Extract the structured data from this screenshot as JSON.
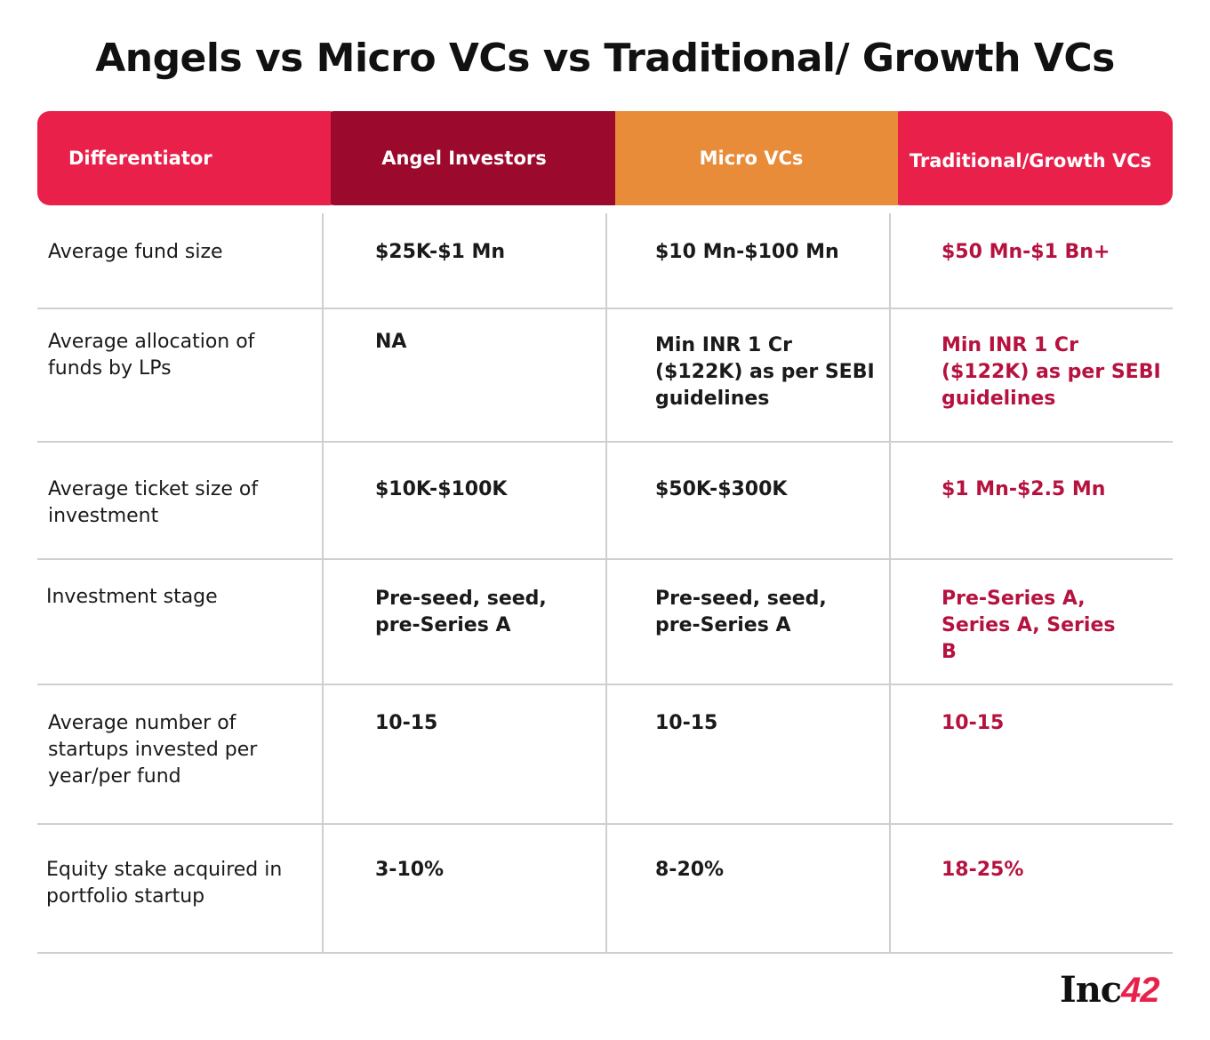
{
  "title": "Angels vs Micro VCs vs Traditional/ Growth VCs",
  "header": {
    "col0": "Differentiator",
    "col1": "Angel Investors",
    "col2": "Micro VCs",
    "col3": "Traditional/Growth VCs"
  },
  "rows": [
    {
      "label": "Average fund size",
      "angel": "$25K-$1 Mn",
      "micro": "$10 Mn-$100 Mn",
      "traditional": "$50 Mn-$1 Bn+"
    },
    {
      "label": "Average allocation of funds by LPs",
      "angel": "NA",
      "micro": "Min INR 1 Cr ($122K) as per SEBI guidelines",
      "traditional": "Min INR 1 Cr ($122K) as per SEBI guidelines"
    },
    {
      "label": "Average ticket size of investment",
      "angel": "$10K-$100K",
      "micro": "$50K-$300K",
      "traditional": "$1 Mn-$2.5 Mn"
    },
    {
      "label": "Investment stage",
      "angel": "Pre-seed, seed, pre-Series A",
      "micro": "Pre-seed, seed, pre-Series A",
      "traditional": "Pre-Series A, Series A, Series B"
    },
    {
      "label": "Average number of startups invested per year/per fund",
      "angel": "10-15",
      "micro": "10-15",
      "traditional": "10-15"
    },
    {
      "label": "Equity stake acquired in portfolio startup",
      "angel": "3-10%",
      "micro": "8-20%",
      "traditional": "18-25%"
    }
  ],
  "logo": {
    "text": "Inc",
    "number": "42"
  }
}
